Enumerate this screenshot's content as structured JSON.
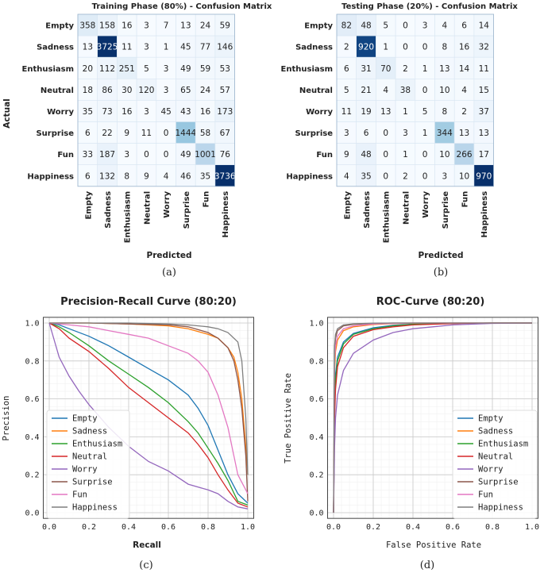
{
  "panel_labels": [
    "(a)",
    "(b)",
    "(c)",
    "(d)"
  ],
  "class_names": [
    "Empty",
    "Sadness",
    "Enthusiasm",
    "Neutral",
    "Worry",
    "Surprise",
    "Fun",
    "Happiness"
  ],
  "series_colors": [
    "#1f77b4",
    "#ff7f0e",
    "#2ca02c",
    "#d62728",
    "#9467bd",
    "#8c564b",
    "#e377c2",
    "#7f7f7f"
  ],
  "chart_data": [
    {
      "type": "heatmap",
      "title": "Training Phase (80%) - Confusion Matrix",
      "xlabel": "Predicted",
      "ylabel": "Actual",
      "rows": [
        "Empty",
        "Sadness",
        "Enthusiasm",
        "Neutral",
        "Worry",
        "Surprise",
        "Fun",
        "Happiness"
      ],
      "cols": [
        "Empty",
        "Sadness",
        "Enthusiasm",
        "Neutral",
        "Worry",
        "Surprise",
        "Fun",
        "Happiness"
      ],
      "values": [
        [
          358,
          158,
          16,
          3,
          7,
          13,
          24,
          59
        ],
        [
          13,
          3725,
          11,
          3,
          1,
          45,
          77,
          146
        ],
        [
          20,
          112,
          251,
          5,
          3,
          49,
          59,
          53
        ],
        [
          18,
          86,
          30,
          120,
          3,
          65,
          24,
          57
        ],
        [
          35,
          73,
          16,
          3,
          45,
          43,
          16,
          173
        ],
        [
          6,
          22,
          9,
          11,
          0,
          1444,
          58,
          67
        ],
        [
          33,
          187,
          3,
          0,
          0,
          49,
          1001,
          76
        ],
        [
          6,
          132,
          8,
          9,
          4,
          46,
          35,
          3736
        ]
      ]
    },
    {
      "type": "heatmap",
      "title": "Testing Phase (20%) - Confusion Matrix",
      "xlabel": "Predicted",
      "ylabel": "Actual",
      "rows": [
        "Empty",
        "Sadness",
        "Enthusiasm",
        "Neutral",
        "Worry",
        "Surprise",
        "Fun",
        "Happiness"
      ],
      "cols": [
        "Empty",
        "Sadness",
        "Enthusiasm",
        "Neutral",
        "Worry",
        "Surprise",
        "Fun",
        "Happiness"
      ],
      "values": [
        [
          82,
          48,
          5,
          0,
          3,
          4,
          6,
          14
        ],
        [
          2,
          920,
          1,
          0,
          0,
          8,
          16,
          32
        ],
        [
          6,
          31,
          70,
          2,
          1,
          13,
          14,
          11
        ],
        [
          5,
          21,
          4,
          38,
          0,
          10,
          4,
          15
        ],
        [
          11,
          19,
          13,
          1,
          5,
          8,
          2,
          37
        ],
        [
          3,
          6,
          0,
          3,
          1,
          344,
          13,
          13
        ],
        [
          9,
          48,
          0,
          1,
          0,
          10,
          266,
          17
        ],
        [
          4,
          35,
          0,
          2,
          0,
          3,
          10,
          970
        ]
      ]
    },
    {
      "type": "line",
      "title": "Precision-Recall Curve (80:20)",
      "xlabel": "Recall",
      "ylabel": "Precision",
      "xlim": [
        0,
        1
      ],
      "ylim": [
        0,
        1
      ],
      "xticks": [
        "0.0",
        "0.2",
        "0.4",
        "0.6",
        "0.8",
        "1.0"
      ],
      "yticks": [
        "0.0",
        "0.2",
        "0.4",
        "0.6",
        "0.8",
        "1.0"
      ],
      "legend_position": "lower-left",
      "series": [
        {
          "name": "Empty",
          "x": [
            0,
            0.05,
            0.1,
            0.2,
            0.3,
            0.4,
            0.5,
            0.6,
            0.7,
            0.75,
            0.8,
            0.85,
            0.9,
            0.95,
            1.0
          ],
          "y": [
            1.0,
            0.99,
            0.97,
            0.93,
            0.88,
            0.82,
            0.76,
            0.7,
            0.62,
            0.55,
            0.46,
            0.33,
            0.2,
            0.1,
            0.05
          ]
        },
        {
          "name": "Sadness",
          "x": [
            0,
            0.2,
            0.4,
            0.5,
            0.6,
            0.7,
            0.8,
            0.85,
            0.9,
            0.93,
            0.95,
            0.97,
            0.99,
            1.0
          ],
          "y": [
            1.0,
            1.0,
            0.995,
            0.99,
            0.985,
            0.97,
            0.94,
            0.92,
            0.87,
            0.82,
            0.74,
            0.6,
            0.35,
            0.2
          ]
        },
        {
          "name": "Enthusiasm",
          "x": [
            0,
            0.05,
            0.1,
            0.2,
            0.3,
            0.4,
            0.5,
            0.6,
            0.7,
            0.75,
            0.8,
            0.85,
            0.9,
            0.95,
            1.0
          ],
          "y": [
            1.0,
            0.98,
            0.95,
            0.88,
            0.8,
            0.73,
            0.66,
            0.58,
            0.48,
            0.42,
            0.34,
            0.26,
            0.17,
            0.06,
            0.04
          ]
        },
        {
          "name": "Neutral",
          "x": [
            0,
            0.05,
            0.1,
            0.2,
            0.3,
            0.4,
            0.5,
            0.6,
            0.7,
            0.75,
            0.8,
            0.85,
            0.9,
            0.95,
            1.0
          ],
          "y": [
            1.0,
            0.97,
            0.92,
            0.85,
            0.76,
            0.66,
            0.58,
            0.5,
            0.42,
            0.36,
            0.29,
            0.2,
            0.12,
            0.05,
            0.03
          ]
        },
        {
          "name": "Worry",
          "x": [
            0,
            0.05,
            0.1,
            0.15,
            0.2,
            0.3,
            0.4,
            0.5,
            0.6,
            0.7,
            0.8,
            0.85,
            0.9,
            0.95,
            1.0
          ],
          "y": [
            1.0,
            0.82,
            0.72,
            0.64,
            0.57,
            0.45,
            0.35,
            0.27,
            0.22,
            0.15,
            0.12,
            0.1,
            0.06,
            0.03,
            0.02
          ]
        },
        {
          "name": "Surprise",
          "x": [
            0,
            0.2,
            0.4,
            0.6,
            0.7,
            0.8,
            0.85,
            0.9,
            0.93,
            0.95,
            0.97,
            0.99,
            1.0
          ],
          "y": [
            1.0,
            1.0,
            0.995,
            0.99,
            0.98,
            0.95,
            0.92,
            0.87,
            0.8,
            0.7,
            0.55,
            0.3,
            0.06
          ]
        },
        {
          "name": "Fun",
          "x": [
            0,
            0.1,
            0.2,
            0.3,
            0.4,
            0.5,
            0.6,
            0.7,
            0.75,
            0.8,
            0.85,
            0.9,
            0.95,
            1.0
          ],
          "y": [
            1.0,
            0.99,
            0.98,
            0.96,
            0.94,
            0.92,
            0.88,
            0.84,
            0.8,
            0.74,
            0.62,
            0.45,
            0.2,
            0.1
          ]
        },
        {
          "name": "Happiness",
          "x": [
            0,
            0.2,
            0.4,
            0.6,
            0.7,
            0.8,
            0.85,
            0.9,
            0.95,
            0.97,
            0.99,
            1.0
          ],
          "y": [
            1.0,
            1.0,
            1.0,
            0.995,
            0.99,
            0.98,
            0.97,
            0.95,
            0.9,
            0.8,
            0.5,
            0.2
          ]
        }
      ]
    },
    {
      "type": "line",
      "title": "ROC-Curve (80:20)",
      "xlabel": "False Positive Rate",
      "ylabel": "True Positive Rate",
      "xlim": [
        0,
        1
      ],
      "ylim": [
        0,
        1
      ],
      "xticks": [
        "0.0",
        "0.2",
        "0.4",
        "0.6",
        "0.8",
        "1.0"
      ],
      "yticks": [
        "0.0",
        "0.2",
        "0.4",
        "0.6",
        "0.8",
        "1.0"
      ],
      "legend_position": "lower-right",
      "series": [
        {
          "name": "Empty",
          "x": [
            0,
            0.005,
            0.01,
            0.02,
            0.05,
            0.1,
            0.2,
            0.3,
            0.4,
            0.6,
            0.8,
            1.0
          ],
          "y": [
            0,
            0.6,
            0.73,
            0.82,
            0.9,
            0.945,
            0.975,
            0.988,
            0.994,
            0.998,
            1.0,
            1.0
          ]
        },
        {
          "name": "Sadness",
          "x": [
            0,
            0.005,
            0.01,
            0.02,
            0.05,
            0.1,
            0.2,
            0.3,
            0.4,
            0.6,
            0.8,
            1.0
          ],
          "y": [
            0,
            0.75,
            0.85,
            0.91,
            0.96,
            0.98,
            0.992,
            0.997,
            0.999,
            1.0,
            1.0,
            1.0
          ]
        },
        {
          "name": "Enthusiasm",
          "x": [
            0,
            0.005,
            0.01,
            0.02,
            0.05,
            0.1,
            0.2,
            0.3,
            0.4,
            0.6,
            0.8,
            1.0
          ],
          "y": [
            0,
            0.55,
            0.7,
            0.8,
            0.89,
            0.94,
            0.97,
            0.985,
            0.993,
            0.998,
            1.0,
            1.0
          ]
        },
        {
          "name": "Neutral",
          "x": [
            0,
            0.005,
            0.01,
            0.02,
            0.05,
            0.1,
            0.2,
            0.3,
            0.4,
            0.6,
            0.8,
            1.0
          ],
          "y": [
            0,
            0.5,
            0.65,
            0.77,
            0.87,
            0.93,
            0.965,
            0.98,
            0.99,
            0.997,
            1.0,
            1.0
          ]
        },
        {
          "name": "Worry",
          "x": [
            0,
            0.005,
            0.01,
            0.02,
            0.05,
            0.1,
            0.2,
            0.3,
            0.4,
            0.5,
            0.6,
            0.8,
            1.0
          ],
          "y": [
            0,
            0.35,
            0.5,
            0.62,
            0.75,
            0.84,
            0.91,
            0.95,
            0.97,
            0.98,
            0.99,
            0.998,
            1.0
          ]
        },
        {
          "name": "Surprise",
          "x": [
            0,
            0.005,
            0.01,
            0.02,
            0.05,
            0.1,
            0.2,
            0.3,
            0.4,
            0.6,
            0.8,
            1.0
          ],
          "y": [
            0,
            0.85,
            0.92,
            0.96,
            0.985,
            0.993,
            0.998,
            1.0,
            1.0,
            1.0,
            1.0,
            1.0
          ]
        },
        {
          "name": "Fun",
          "x": [
            0,
            0.005,
            0.01,
            0.02,
            0.05,
            0.1,
            0.2,
            0.3,
            0.4,
            0.6,
            0.8,
            1.0
          ],
          "y": [
            0,
            0.8,
            0.88,
            0.93,
            0.97,
            0.985,
            0.995,
            0.998,
            1.0,
            1.0,
            1.0,
            1.0
          ]
        },
        {
          "name": "Happiness",
          "x": [
            0,
            0.005,
            0.01,
            0.02,
            0.05,
            0.1,
            0.2,
            0.3,
            0.4,
            0.6,
            0.8,
            1.0
          ],
          "y": [
            0,
            0.88,
            0.94,
            0.97,
            0.99,
            0.996,
            0.999,
            1.0,
            1.0,
            1.0,
            1.0,
            1.0
          ]
        }
      ]
    }
  ]
}
